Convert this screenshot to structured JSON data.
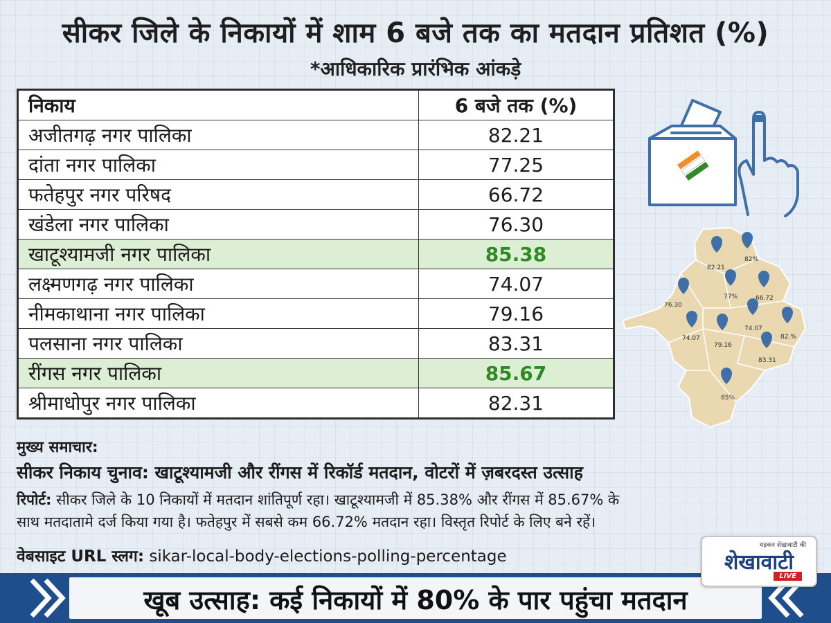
{
  "header": {
    "title": "सीकर जिले के निकायों में शाम 6 बजे तक का मतदान प्रतिशत (%)",
    "subtitle": "*आधिकारिक प्रारंभिक आंकड़े"
  },
  "table": {
    "col_name": "निकाय",
    "col_value": "6 बजे तक (%)",
    "rows": [
      {
        "name": "अजीतगढ़ नगर पालिका",
        "value": "82.21"
      },
      {
        "name": "दांता नगर पालिका",
        "value": "77.25"
      },
      {
        "name": "फतेहपुर नगर परिषद",
        "value": "66.72"
      },
      {
        "name": "खंडेला नगर पालिका",
        "value": "76.30"
      },
      {
        "name": "खाटूश्यामजी नगर पालिका",
        "value": "85.38"
      },
      {
        "name": "लक्ष्मणगढ़ नगर पालिका",
        "value": "74.07"
      },
      {
        "name": "नीमकाथाना नगर पालिका",
        "value": "79.16"
      },
      {
        "name": "पलसाना नगर पालिका",
        "value": "83.31"
      },
      {
        "name": "रींगस नगर पालिका",
        "value": "85.67"
      },
      {
        "name": "श्रीमाधोपुर नगर पालिका",
        "value": "82.31"
      }
    ]
  },
  "map": {
    "labels": [
      "82.21",
      "82%",
      "77%",
      "66.72",
      "76.30",
      "74.07",
      "74.07",
      "79.16",
      "82.%",
      "83.31",
      "85%"
    ]
  },
  "news": {
    "heading": "मुख्य समाचार:",
    "headline": "सीकर निकाय चुनाव: खाटूश्यामजी और रींगस में रिकॉर्ड मतदान, वोटरों में ज़बरदस्त उत्साह",
    "report_label": "रिपोर्ट:",
    "report_line1": " सीकर जिले के 10 निकायों में मतदान शांतिपूर्ण रहा। खाटूश्यामजी में 85.38% और रींगस में 85.67% के",
    "report_line2": "साथ मतदातामे दर्ज किया गया है। फतेहपुर में सबसे कम 66.72% मतदान रहा। विस्तृत रिपोर्ट के लिए बने रहें।",
    "url_label": "वेबसाइट URL स्लग:",
    "url_value": " sikar-local-body-elections-polling-percentage"
  },
  "footer": {
    "banner": "खूब उत्साह: कई निकायों में 80% के पार पहुंचा मतदान"
  },
  "logo": {
    "small": "धड़कन शेखावाटी की",
    "main": "शेखावाटी",
    "live": "LIVE"
  },
  "colors": {
    "highlight_row": "#dcefd5",
    "highlight_text": "#2f8a25",
    "banner_blue": "#1f4e8c",
    "map_fill": "#e9d8b0"
  }
}
